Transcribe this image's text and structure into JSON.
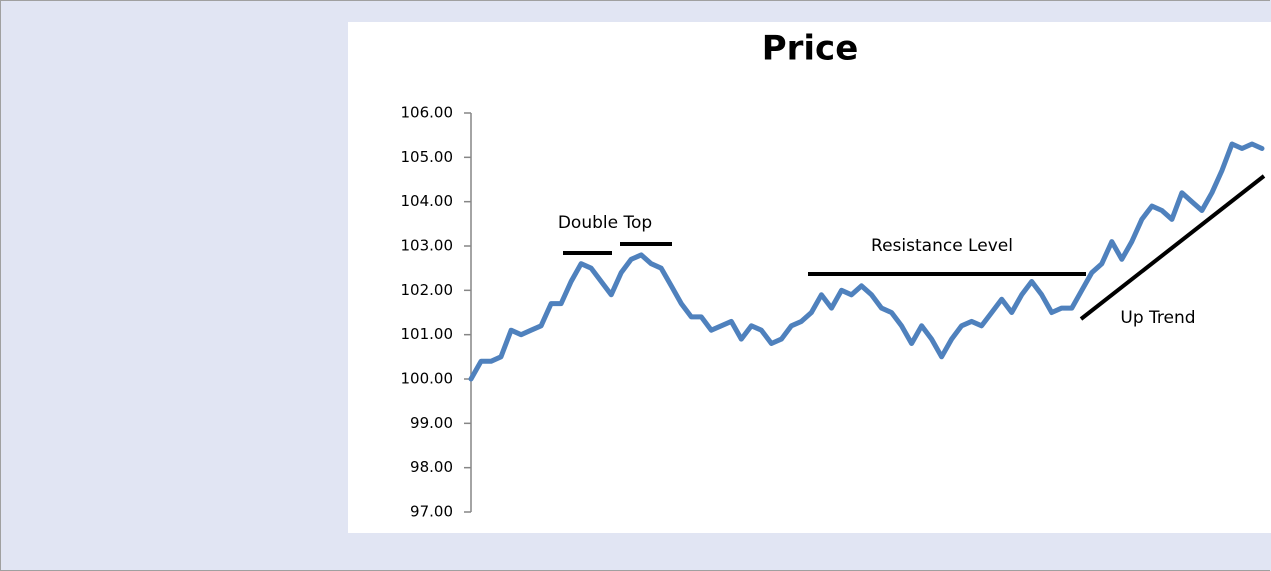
{
  "chart_data": {
    "type": "line",
    "title": "Price",
    "color": "#4f81bd",
    "values": [
      100.0,
      100.4,
      100.4,
      100.5,
      101.1,
      101.0,
      101.1,
      101.2,
      101.7,
      101.7,
      102.2,
      102.6,
      102.5,
      102.2,
      101.9,
      102.4,
      102.7,
      102.8,
      102.6,
      102.5,
      102.1,
      101.7,
      101.4,
      101.4,
      101.1,
      101.2,
      101.3,
      100.9,
      101.2,
      101.1,
      100.8,
      100.9,
      101.2,
      101.3,
      101.5,
      101.9,
      101.6,
      102.0,
      101.9,
      102.1,
      101.9,
      101.6,
      101.5,
      101.2,
      100.8,
      101.2,
      100.9,
      100.5,
      100.9,
      101.2,
      101.3,
      101.2,
      101.5,
      101.8,
      101.5,
      101.9,
      102.2,
      101.9,
      101.5,
      101.6,
      101.6,
      102.0,
      102.4,
      102.6,
      103.1,
      102.7,
      103.1,
      103.6,
      103.9,
      103.8,
      103.6,
      104.2,
      104.0,
      103.8,
      104.2,
      104.7,
      105.3,
      105.2,
      105.3,
      105.2
    ],
    "ylim": [
      97,
      106
    ],
    "yticks": [
      {
        "value": 97,
        "label": "97.00"
      },
      {
        "value": 98,
        "label": "98.00"
      },
      {
        "value": 99,
        "label": "99.00"
      },
      {
        "value": 100,
        "label": "100.00"
      },
      {
        "value": 101,
        "label": "101.00"
      },
      {
        "value": 102,
        "label": "102.00"
      },
      {
        "value": 103,
        "label": "103.00"
      },
      {
        "value": 104,
        "label": "104.00"
      },
      {
        "value": 105,
        "label": "105.00"
      },
      {
        "value": 106,
        "label": "106.00"
      }
    ],
    "annotations": [
      "Double Top",
      "Resistance Level",
      "Up Trend"
    ]
  }
}
